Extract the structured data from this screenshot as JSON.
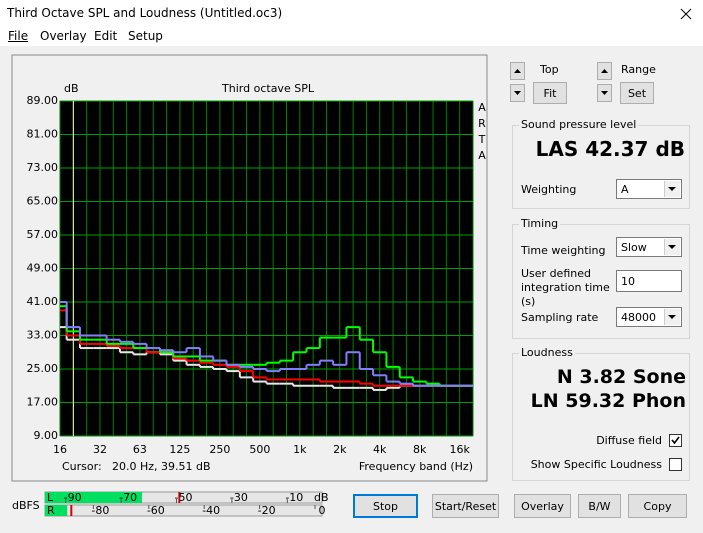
{
  "window": {
    "title": "Third Octave SPL and Loudness (Untitled.oc3)"
  },
  "menu": [
    "File",
    "Overlay",
    "Edit",
    "Setup"
  ],
  "chart_data": {
    "type": "line",
    "title": "Third octave SPL",
    "y_unit": "dB",
    "side_label": "ARTA",
    "cursor_label": "Cursor:",
    "cursor_value": "20.0 Hz, 39.51 dB",
    "xlabel": "Frequency band (Hz)",
    "categories": [
      "16",
      null,
      null,
      "32",
      null,
      null,
      "63",
      null,
      null,
      "125",
      null,
      null,
      "250",
      null,
      null,
      "500",
      null,
      null,
      "1k",
      null,
      null,
      "2k",
      null,
      null,
      "4k",
      null,
      null,
      "8k",
      null,
      null,
      "16k",
      null
    ],
    "ylim": [
      9,
      89
    ],
    "yticks": [
      {
        "value": 9,
        "label": "9.00"
      },
      {
        "value": 17,
        "label": "17.00"
      },
      {
        "value": 25,
        "label": "25.00"
      },
      {
        "value": 33,
        "label": "33.00"
      },
      {
        "value": 41,
        "label": "41.00"
      },
      {
        "value": 49,
        "label": "49.00"
      },
      {
        "value": 57,
        "label": "57.00"
      },
      {
        "value": 65,
        "label": "65.00"
      },
      {
        "value": 73,
        "label": "73.00"
      },
      {
        "value": 81,
        "label": "81.00"
      },
      {
        "value": 89,
        "label": "89.00"
      }
    ],
    "grid": true,
    "series": [
      {
        "color": "#e8e8e8",
        "values": [
          35,
          32,
          30,
          30,
          30,
          29,
          28.5,
          29,
          28.5,
          27,
          26,
          25.5,
          25,
          24.5,
          23,
          22,
          21.5,
          21.5,
          21,
          21,
          21,
          20.5,
          20.5,
          20.5,
          20,
          20.5,
          21,
          21,
          21,
          21,
          21,
          21
        ]
      },
      {
        "color": "#ff0000",
        "values": [
          39,
          33,
          31,
          31,
          30.5,
          30,
          30,
          29,
          29,
          27.5,
          27,
          26.5,
          26,
          25.5,
          24.5,
          23,
          22.5,
          22.5,
          22.5,
          22.5,
          22,
          22,
          22,
          21.5,
          21,
          21,
          21,
          21,
          21,
          21,
          21,
          21
        ]
      },
      {
        "color": "#00ff00",
        "values": [
          40,
          34,
          32,
          32,
          31,
          31,
          30,
          30,
          29,
          28,
          28,
          27,
          27,
          26,
          26,
          26,
          26.5,
          27,
          29,
          30,
          32.5,
          32.5,
          35,
          32,
          29,
          25.5,
          23,
          22,
          21.5,
          21,
          21,
          21
        ]
      },
      {
        "color": "#8080ff",
        "values": [
          41,
          35,
          33,
          33,
          32,
          31.5,
          31,
          30,
          29.5,
          29,
          30,
          28,
          27,
          26,
          25.5,
          25,
          24.5,
          25,
          25,
          26,
          27,
          26,
          29,
          25,
          23.5,
          22,
          21.5,
          21,
          21,
          21,
          21,
          21
        ]
      }
    ]
  },
  "controls": {
    "top": {
      "label": "Top",
      "button": "Fit"
    },
    "range": {
      "label": "Range",
      "button": "Set"
    }
  },
  "spl": {
    "title": "Sound pressure level",
    "reading": "LAS 42.37 dB",
    "weighting_label": "Weighting",
    "weighting": "A"
  },
  "timing": {
    "title": "Timing",
    "time_weighting_label": "Time weighting",
    "time_weighting": "Slow",
    "integration_label": "User defined integration time (s)",
    "integration": 10,
    "sampling_label": "Sampling rate",
    "sampling": 48000
  },
  "loudness": {
    "title": "Loudness",
    "n": "N 3.82 Sone",
    "ln": "LN 59.32 Phon",
    "diffuse_label": "Diffuse field",
    "diffuse": true,
    "specific_label": "Show Specific Loudness",
    "specific": false
  },
  "meter": {
    "label": "dBFS",
    "unit": "dB",
    "xlim": [
      -100,
      0
    ],
    "channels": [
      {
        "name": "L",
        "ticks": [
          -90,
          -70,
          -50,
          -30,
          -10
        ],
        "level": -65,
        "peak": -51.5
      },
      {
        "name": "R",
        "ticks": [
          -80,
          -60,
          -40,
          -20,
          0
        ],
        "level": -92,
        "peak": -90.5
      }
    ]
  },
  "buttons": [
    "Stop",
    "Start/Reset",
    "Overlay",
    "B/W",
    "Copy"
  ]
}
